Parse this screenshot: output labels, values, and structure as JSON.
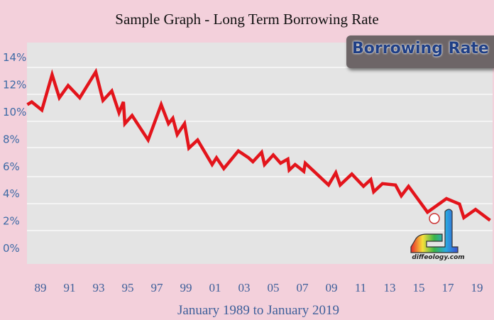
{
  "chart_data": {
    "type": "line",
    "title": "Sample Graph - Long Term Borrowing Rate",
    "xlabel": "January 1989 to January 2019",
    "ylabel": "",
    "legend": {
      "label": "Borrowing Rate",
      "placement": "top-right"
    },
    "y_ticks": [
      "0%",
      "2%",
      "4%",
      "6%",
      "8%",
      "10%",
      "12%",
      "14%"
    ],
    "x_ticks": [
      "89",
      "91",
      "93",
      "95",
      "97",
      "99",
      "01",
      "03",
      "05",
      "07",
      "09",
      "11",
      "13",
      "15",
      "17",
      "19"
    ],
    "ylim": [
      0,
      14
    ],
    "xlim": [
      1988.1,
      2019.9
    ],
    "grid": true,
    "series": [
      {
        "name": "Borrowing Rate",
        "color": "#e3141b",
        "points": [
          [
            1988.1,
            10.5
          ],
          [
            1988.4,
            10.7
          ],
          [
            1989.1,
            10.1
          ],
          [
            1989.8,
            12.7
          ],
          [
            1990.3,
            11.0
          ],
          [
            1990.9,
            11.9
          ],
          [
            1991.7,
            11.0
          ],
          [
            1992.8,
            12.9
          ],
          [
            1993.3,
            10.8
          ],
          [
            1993.9,
            11.5
          ],
          [
            1994.4,
            9.9
          ],
          [
            1994.7,
            10.7
          ],
          [
            1994.8,
            9.1
          ],
          [
            1995.3,
            9.7
          ],
          [
            1996.4,
            7.9
          ],
          [
            1997.3,
            10.5
          ],
          [
            1997.8,
            9.1
          ],
          [
            1998.1,
            9.5
          ],
          [
            1998.4,
            8.3
          ],
          [
            1998.9,
            9.1
          ],
          [
            1999.2,
            7.3
          ],
          [
            1999.8,
            7.9
          ],
          [
            2000.8,
            6.1
          ],
          [
            2001.1,
            6.6
          ],
          [
            2001.6,
            5.8
          ],
          [
            2002.6,
            7.1
          ],
          [
            2003.3,
            6.6
          ],
          [
            2003.6,
            6.3
          ],
          [
            2004.2,
            7.0
          ],
          [
            2004.4,
            6.1
          ],
          [
            2005.0,
            6.8
          ],
          [
            2005.5,
            6.2
          ],
          [
            2006.0,
            6.5
          ],
          [
            2006.1,
            5.7
          ],
          [
            2006.5,
            6.1
          ],
          [
            2007.1,
            5.6
          ],
          [
            2007.2,
            6.2
          ],
          [
            2008.8,
            4.6
          ],
          [
            2009.3,
            5.5
          ],
          [
            2009.6,
            4.6
          ],
          [
            2010.4,
            5.4
          ],
          [
            2011.2,
            4.5
          ],
          [
            2011.7,
            5.0
          ],
          [
            2011.9,
            4.1
          ],
          [
            2012.5,
            4.7
          ],
          [
            2013.4,
            4.6
          ],
          [
            2013.8,
            3.8
          ],
          [
            2014.3,
            4.5
          ],
          [
            2015.6,
            2.6
          ],
          [
            2016.9,
            3.6
          ],
          [
            2017.8,
            3.2
          ],
          [
            2018.1,
            2.2
          ],
          [
            2018.9,
            2.8
          ],
          [
            2019.9,
            2.0
          ]
        ]
      }
    ]
  },
  "watermark": {
    "text": "diffeology.com"
  }
}
